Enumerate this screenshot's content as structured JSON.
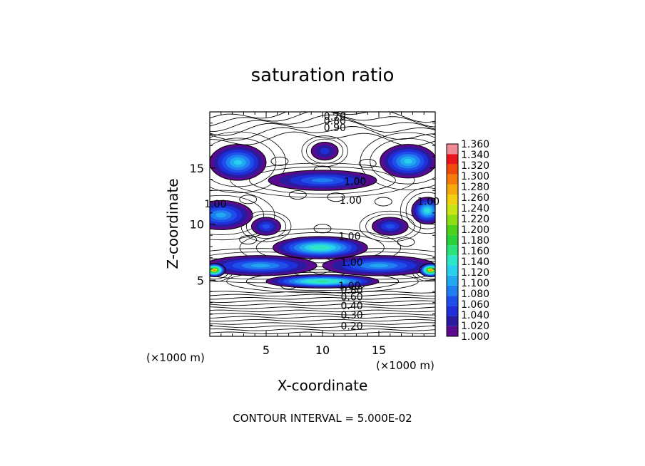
{
  "chart_data": {
    "type": "heatmap",
    "title": "saturation ratio",
    "xlabel": "X-coordinate",
    "ylabel": "Z-coordinate",
    "x_unit_left": "(×1000 m)",
    "x_unit_right": "(×1000 m)",
    "xlim": [
      0,
      20
    ],
    "ylim": [
      0,
      20
    ],
    "x_ticks": [
      5,
      10,
      15
    ],
    "y_ticks": [
      5,
      10,
      15
    ],
    "footer": "CONTOUR INTERVAL = 5.000E-02",
    "colorbar": {
      "levels": [
        "1.000",
        "1.020",
        "1.040",
        "1.060",
        "1.080",
        "1.100",
        "1.120",
        "1.140",
        "1.160",
        "1.180",
        "1.200",
        "1.220",
        "1.240",
        "1.260",
        "1.280",
        "1.300",
        "1.320",
        "1.340",
        "1.360"
      ],
      "colors": [
        "#5a0a8c",
        "#2a1aa0",
        "#1f2fd8",
        "#1e4fe8",
        "#1f7ff0",
        "#22a8f0",
        "#28d0ee",
        "#2ee6c8",
        "#2ce07a",
        "#2ad23a",
        "#4ad21a",
        "#8ede14",
        "#c8e414",
        "#f0d010",
        "#f6a80c",
        "#f47a0a",
        "#ee4a0a",
        "#e8161a",
        "#ef8a96"
      ]
    },
    "contour_labels": [
      {
        "text": "0.70",
        "x": 11.1,
        "z": 19.3
      },
      {
        "text": "0.80",
        "x": 11.1,
        "z": 18.9
      },
      {
        "text": "0.90",
        "x": 11.1,
        "z": 18.3
      },
      {
        "text": "1.00",
        "x": 12.9,
        "z": 13.5
      },
      {
        "text": "1.00",
        "x": 12.5,
        "z": 11.8
      },
      {
        "text": "1.00",
        "x": 0.5,
        "z": 11.5
      },
      {
        "text": "1.00",
        "x": 19.4,
        "z": 11.7
      },
      {
        "text": "1.00",
        "x": 12.4,
        "z": 8.6
      },
      {
        "text": "1.00",
        "x": 12.6,
        "z": 6.3
      },
      {
        "text": "1.00",
        "x": 12.4,
        "z": 4.2
      },
      {
        "text": "0.80",
        "x": 12.6,
        "z": 3.8
      },
      {
        "text": "0.60",
        "x": 12.6,
        "z": 3.2
      },
      {
        "text": "0.40",
        "x": 12.6,
        "z": 2.4
      },
      {
        "text": "0.30",
        "x": 12.6,
        "z": 1.6
      },
      {
        "text": "0.20",
        "x": 12.6,
        "z": 0.6
      }
    ],
    "blobs": [
      {
        "x": 10.2,
        "z": 16.5,
        "rx": 1.2,
        "rz": 0.8,
        "peak": 1.04
      },
      {
        "x": 2.5,
        "z": 15.5,
        "rx": 2.5,
        "rz": 1.6,
        "peak": 1.13
      },
      {
        "x": 17.6,
        "z": 15.6,
        "rx": 2.5,
        "rz": 1.5,
        "peak": 1.13
      },
      {
        "x": 10.0,
        "z": 13.9,
        "rx": 4.8,
        "rz": 0.9,
        "peak": 1.08
      },
      {
        "x": 1.0,
        "z": 10.8,
        "rx": 2.8,
        "rz": 1.3,
        "peak": 1.1
      },
      {
        "x": 19.3,
        "z": 11.2,
        "rx": 1.4,
        "rz": 1.2,
        "peak": 1.15
      },
      {
        "x": 5.0,
        "z": 9.8,
        "rx": 1.3,
        "rz": 0.8,
        "peak": 1.05
      },
      {
        "x": 16.0,
        "z": 9.8,
        "rx": 1.6,
        "rz": 0.8,
        "peak": 1.05
      },
      {
        "x": 9.8,
        "z": 7.9,
        "rx": 4.2,
        "rz": 1.0,
        "peak": 1.17
      },
      {
        "x": 4.5,
        "z": 6.3,
        "rx": 5.0,
        "rz": 0.9,
        "peak": 1.1
      },
      {
        "x": 15.0,
        "z": 6.3,
        "rx": 5.0,
        "rz": 0.9,
        "peak": 1.1
      },
      {
        "x": 0.4,
        "z": 5.9,
        "rx": 1.0,
        "rz": 0.6,
        "peak": 1.3
      },
      {
        "x": 19.6,
        "z": 5.9,
        "rx": 1.0,
        "rz": 0.6,
        "peak": 1.3
      },
      {
        "x": 10.0,
        "z": 4.9,
        "rx": 5.0,
        "rz": 0.6,
        "peak": 1.18
      }
    ]
  }
}
